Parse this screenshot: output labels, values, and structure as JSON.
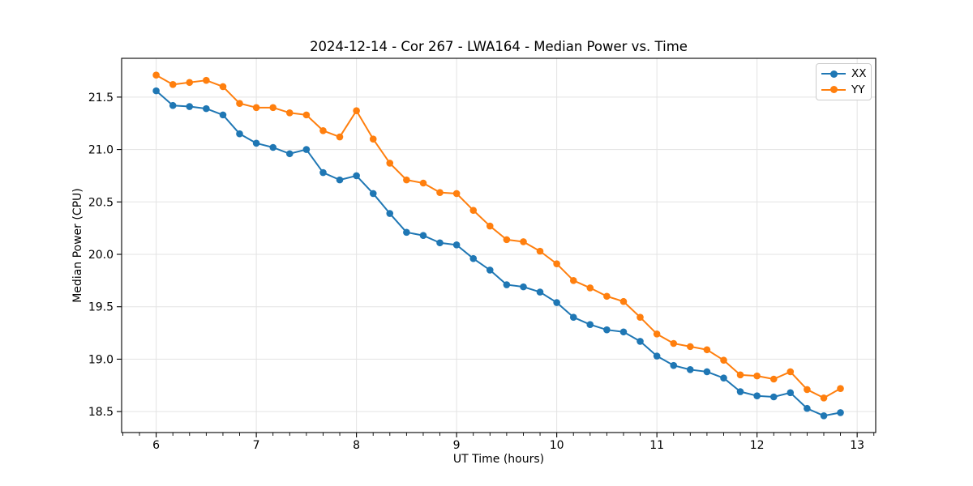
{
  "chart_data": {
    "type": "line",
    "title": "2024-12-14 - Cor 267 - LWA164 - Median Power vs. Time",
    "xlabel": "UT Time (hours)",
    "ylabel": "Median Power (CPU)",
    "xlim": [
      5.655,
      13.185
    ],
    "ylim": [
      18.3,
      21.87
    ],
    "x_ticks": [
      6,
      7,
      8,
      9,
      10,
      11,
      12,
      13
    ],
    "x_tick_labels": [
      "6",
      "7",
      "8",
      "9",
      "10",
      "11",
      "12",
      "13"
    ],
    "y_ticks": [
      18.5,
      19.0,
      19.5,
      20.0,
      20.5,
      21.0,
      21.5
    ],
    "y_tick_labels": [
      "18.5",
      "19.0",
      "19.5",
      "20.0",
      "20.5",
      "21.0",
      "21.5"
    ],
    "x_minor_tick_step": 0.166667,
    "grid": true,
    "grid_color": "#e3e3e3",
    "spine_color": "#000000",
    "background_color": "#ffffff",
    "legend_position": "upper right",
    "x": [
      6.0,
      6.167,
      6.333,
      6.5,
      6.667,
      6.833,
      7.0,
      7.167,
      7.333,
      7.5,
      7.667,
      7.833,
      8.0,
      8.167,
      8.333,
      8.5,
      8.667,
      8.833,
      9.0,
      9.167,
      9.333,
      9.5,
      9.667,
      9.833,
      10.0,
      10.167,
      10.333,
      10.5,
      10.667,
      10.833,
      11.0,
      11.167,
      11.333,
      11.5,
      11.667,
      11.833,
      12.0,
      12.167,
      12.333,
      12.5,
      12.667,
      12.833
    ],
    "series": [
      {
        "name": "XX",
        "color": "#1f77b4",
        "values": [
          21.56,
          21.42,
          21.41,
          21.39,
          21.33,
          21.15,
          21.06,
          21.02,
          20.96,
          21.0,
          20.78,
          20.71,
          20.75,
          20.58,
          20.39,
          20.21,
          20.18,
          20.11,
          20.09,
          19.96,
          19.85,
          19.71,
          19.69,
          19.64,
          19.54,
          19.4,
          19.33,
          19.28,
          19.26,
          19.17,
          19.03,
          18.94,
          18.9,
          18.88,
          18.82,
          18.69,
          18.65,
          18.64,
          18.68,
          18.53,
          18.46,
          18.49
        ]
      },
      {
        "name": "YY",
        "color": "#ff7f0e",
        "values": [
          21.71,
          21.62,
          21.64,
          21.66,
          21.6,
          21.44,
          21.4,
          21.4,
          21.35,
          21.33,
          21.18,
          21.12,
          21.37,
          21.1,
          20.87,
          20.71,
          20.68,
          20.59,
          20.58,
          20.42,
          20.27,
          20.14,
          20.12,
          20.03,
          19.91,
          19.75,
          19.68,
          19.6,
          19.55,
          19.4,
          19.24,
          19.15,
          19.12,
          19.09,
          18.99,
          18.85,
          18.84,
          18.81,
          18.88,
          18.71,
          18.63,
          18.72
        ]
      }
    ]
  }
}
